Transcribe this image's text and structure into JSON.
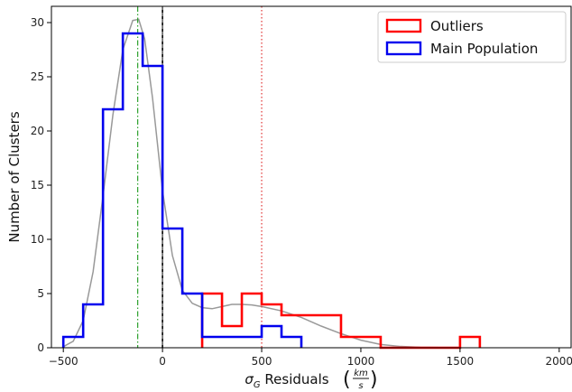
{
  "chart_data": {
    "type": "histogram",
    "xlabel_math": "σ",
    "xlabel_sub": "G",
    "xlabel_text": " Residuals ",
    "xlabel_unit_num": "km",
    "xlabel_unit_den": "s",
    "ylabel": "Number of Clusters",
    "xlim": [
      -560,
      2060
    ],
    "ylim": [
      0,
      31.5
    ],
    "xticks": [
      -500,
      0,
      500,
      1000,
      1500,
      2000
    ],
    "xtick_labels": [
      "−500",
      "0",
      "500",
      "1000",
      "1500",
      "2000"
    ],
    "yticks": [
      0,
      5,
      10,
      15,
      20,
      25,
      30
    ],
    "ytick_labels": [
      "0",
      "5",
      "10",
      "15",
      "20",
      "25",
      "30"
    ],
    "bin_width": 100,
    "legend_position": "top-right",
    "series": [
      {
        "name": "Outliers",
        "color": "#ff0000",
        "bin_edges": [
          200,
          300,
          400,
          500,
          600,
          700,
          800,
          900,
          1000,
          1100,
          1200,
          1300,
          1400,
          1500,
          1600
        ],
        "counts": [
          5,
          2,
          5,
          4,
          3,
          3,
          3,
          1,
          1,
          0,
          0,
          0,
          0,
          1
        ]
      },
      {
        "name": "Main Population",
        "color": "#0000ee",
        "bin_edges": [
          -500,
          -400,
          -300,
          -200,
          -100,
          0,
          100,
          200,
          300,
          400,
          500,
          600,
          700
        ],
        "counts": [
          1,
          4,
          22,
          29,
          26,
          11,
          5,
          1,
          1,
          1,
          2,
          1
        ]
      }
    ],
    "fit_curve": {
      "color": "#999999",
      "points": [
        [
          -500,
          0.1
        ],
        [
          -450,
          0.6
        ],
        [
          -400,
          2.5
        ],
        [
          -350,
          7
        ],
        [
          -300,
          14
        ],
        [
          -250,
          21.5
        ],
        [
          -200,
          27.5
        ],
        [
          -150,
          30.2
        ],
        [
          -120,
          30.3
        ],
        [
          -90,
          28.5
        ],
        [
          -50,
          23
        ],
        [
          0,
          14.5
        ],
        [
          50,
          8.5
        ],
        [
          100,
          5.3
        ],
        [
          150,
          4.1
        ],
        [
          200,
          3.7
        ],
        [
          250,
          3.6
        ],
        [
          300,
          3.8
        ],
        [
          350,
          4.0
        ],
        [
          400,
          4.0
        ],
        [
          450,
          3.95
        ],
        [
          500,
          3.8
        ],
        [
          600,
          3.4
        ],
        [
          700,
          2.8
        ],
        [
          800,
          2.0
        ],
        [
          900,
          1.3
        ],
        [
          1000,
          0.7
        ],
        [
          1100,
          0.3
        ],
        [
          1200,
          0.12
        ],
        [
          1300,
          0.04
        ],
        [
          1500,
          0.0
        ]
      ]
    },
    "vertical_lines": [
      {
        "x": -125,
        "color": "#2ca02c",
        "style": "dashdot"
      },
      {
        "x": 0,
        "color": "#000000",
        "style": "solid"
      },
      {
        "x": 0,
        "color": "#888888",
        "style": "dashed"
      },
      {
        "x": 500,
        "color": "#e03030",
        "style": "dotted"
      }
    ]
  }
}
